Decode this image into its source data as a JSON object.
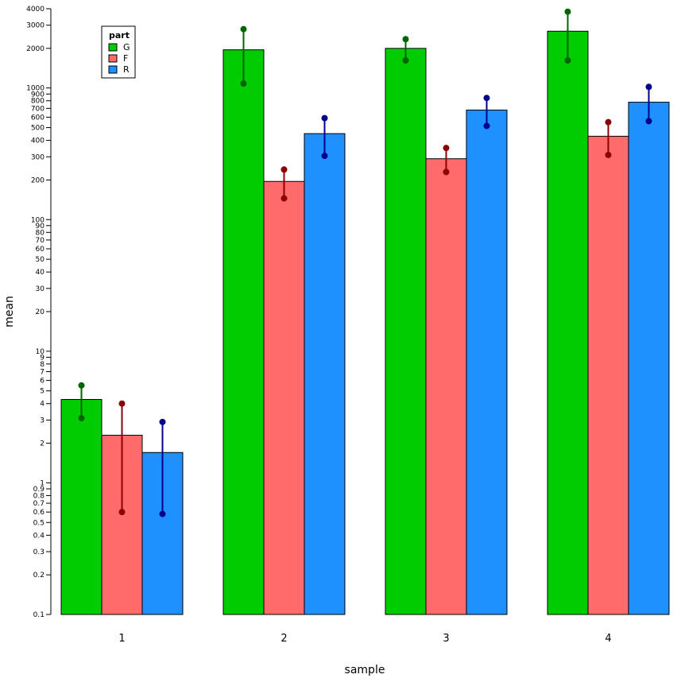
{
  "chart_data": {
    "type": "bar",
    "scale_y": "log",
    "ylim": [
      0.1,
      4000
    ],
    "xlabel": "sample",
    "ylabel": "mean",
    "categories": [
      "1",
      "2",
      "3",
      "4"
    ],
    "y_ticks": [
      {
        "value": 0.1,
        "label": "0.1"
      },
      {
        "value": 0.2,
        "label": "0.2"
      },
      {
        "value": 0.3,
        "label": "0.3"
      },
      {
        "value": 0.4,
        "label": "0.4"
      },
      {
        "value": 0.5,
        "label": "0.5"
      },
      {
        "value": 0.6,
        "label": "0.6"
      },
      {
        "value": 0.7,
        "label": "0.7"
      },
      {
        "value": 0.8,
        "label": "0.8"
      },
      {
        "value": 0.9,
        "label": "0.9"
      },
      {
        "value": 1,
        "label": "1"
      },
      {
        "value": 2,
        "label": "2"
      },
      {
        "value": 3,
        "label": "3"
      },
      {
        "value": 4,
        "label": "4"
      },
      {
        "value": 5,
        "label": "5"
      },
      {
        "value": 6,
        "label": "6"
      },
      {
        "value": 7,
        "label": "7"
      },
      {
        "value": 8,
        "label": "8"
      },
      {
        "value": 9,
        "label": "9"
      },
      {
        "value": 10,
        "label": "10"
      },
      {
        "value": 20,
        "label": "20"
      },
      {
        "value": 30,
        "label": "30"
      },
      {
        "value": 40,
        "label": "40"
      },
      {
        "value": 50,
        "label": "50"
      },
      {
        "value": 60,
        "label": "60"
      },
      {
        "value": 70,
        "label": "70"
      },
      {
        "value": 80,
        "label": "80"
      },
      {
        "value": 90,
        "label": "90"
      },
      {
        "value": 100,
        "label": "100"
      },
      {
        "value": 200,
        "label": "200"
      },
      {
        "value": 300,
        "label": "300"
      },
      {
        "value": 400,
        "label": "400"
      },
      {
        "value": 500,
        "label": "500"
      },
      {
        "value": 600,
        "label": "600"
      },
      {
        "value": 700,
        "label": "700"
      },
      {
        "value": 800,
        "label": "800"
      },
      {
        "value": 900,
        "label": "900"
      },
      {
        "value": 1000,
        "label": "1000"
      },
      {
        "value": 2000,
        "label": "2000"
      },
      {
        "value": 3000,
        "label": "3000"
      },
      {
        "value": 4000,
        "label": "4000"
      }
    ],
    "legend": {
      "title": "part",
      "position": "top-left",
      "entries": [
        "G",
        "F",
        "R"
      ]
    },
    "grid": false,
    "series": [
      {
        "name": "G",
        "color": "#00cd00",
        "error_color": "#006400",
        "values": [
          4.3,
          1950,
          2000,
          2700
        ],
        "error_low": [
          3.1,
          1080,
          1620,
          1620
        ],
        "error_high": [
          5.5,
          2800,
          2350,
          3800
        ]
      },
      {
        "name": "F",
        "color": "#ff6a6a",
        "error_color": "#8b0000",
        "values": [
          2.3,
          195,
          290,
          430
        ],
        "error_low": [
          0.6,
          145,
          230,
          310
        ],
        "error_high": [
          4.0,
          240,
          350,
          550
        ]
      },
      {
        "name": "R",
        "color": "#1e90ff",
        "error_color": "#00008b",
        "values": [
          1.7,
          450,
          680,
          780
        ],
        "error_low": [
          0.58,
          305,
          515,
          560
        ],
        "error_high": [
          2.9,
          590,
          840,
          1020
        ]
      }
    ]
  }
}
